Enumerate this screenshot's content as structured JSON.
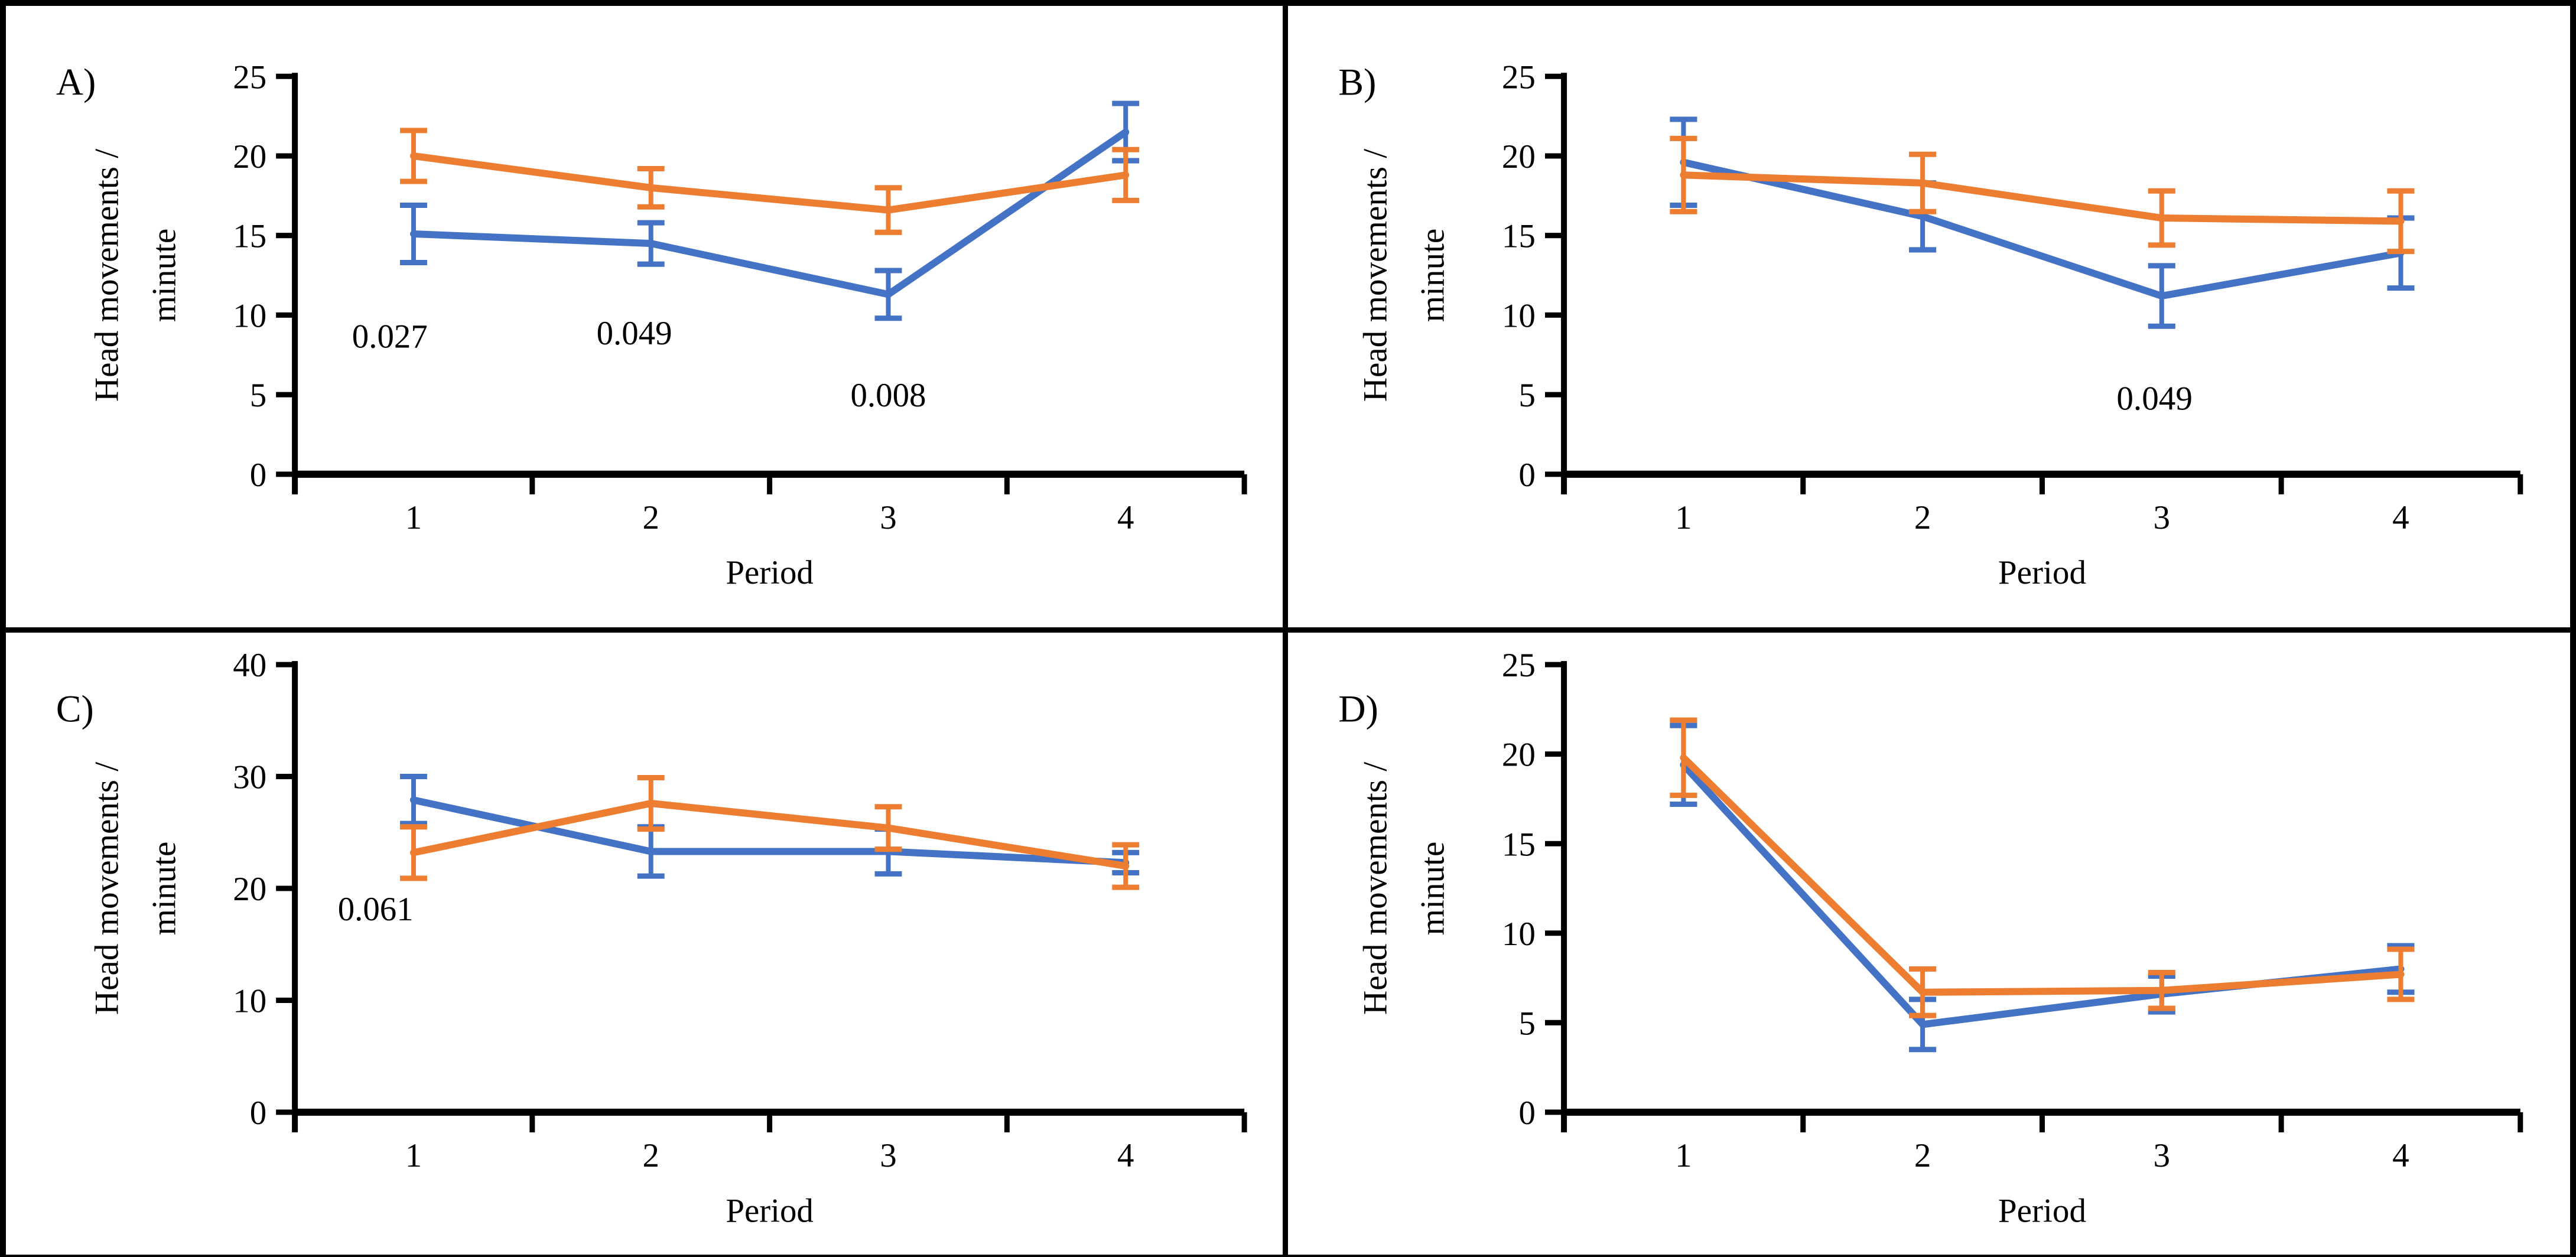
{
  "figure": {
    "description": "Four-panel line chart figure comparing two groups (blue and orange series) of head movements per minute across four periods, with error bars and p-value annotations",
    "background_color": "#ffffff",
    "border_color": "#000000",
    "series_colors": {
      "blue": "#4472C4",
      "orange": "#ED7D31"
    }
  },
  "chart_data": [
    {
      "panel": "A",
      "label": "A)",
      "type": "line",
      "xlabel": "Period",
      "ylabel": "Head movements / minute",
      "ylabel_lines": [
        "Head movements /",
        "minute"
      ],
      "categories": [
        "1",
        "2",
        "3",
        "4"
      ],
      "ylim": [
        0,
        25
      ],
      "yticks": [
        25,
        20,
        15,
        10,
        5,
        0
      ],
      "grid": false,
      "legend": "none",
      "series": [
        {
          "name": "series-blue",
          "color": "#4472C4",
          "values": [
            15.1,
            14.5,
            11.3,
            21.5
          ],
          "errors": [
            1.8,
            1.3,
            1.5,
            1.8
          ]
        },
        {
          "name": "series-orange",
          "color": "#ED7D31",
          "values": [
            20.0,
            18.0,
            16.6,
            18.8
          ],
          "errors": [
            1.6,
            1.2,
            1.4,
            1.6
          ]
        }
      ],
      "annotations": [
        {
          "text": "0.027",
          "x": 0.9,
          "y": 8.7
        },
        {
          "text": "0.049",
          "x": 1.93,
          "y": 8.9
        },
        {
          "text": "0.008",
          "x": 3.0,
          "y": 5.0
        }
      ]
    },
    {
      "panel": "B",
      "label": "B)",
      "type": "line",
      "xlabel": "Period",
      "ylabel": "Head movements / minute",
      "ylabel_lines": [
        "Head movements /",
        "minute"
      ],
      "categories": [
        "1",
        "2",
        "3",
        "4"
      ],
      "ylim": [
        0,
        25
      ],
      "yticks": [
        25,
        20,
        15,
        10,
        5,
        0
      ],
      "grid": false,
      "legend": "none",
      "series": [
        {
          "name": "series-blue",
          "color": "#4472C4",
          "values": [
            19.6,
            16.2,
            11.2,
            13.9
          ],
          "errors": [
            2.7,
            2.1,
            1.9,
            2.2
          ]
        },
        {
          "name": "series-orange",
          "color": "#ED7D31",
          "values": [
            18.8,
            18.3,
            16.1,
            15.9
          ],
          "errors": [
            2.3,
            1.8,
            1.7,
            1.9
          ]
        }
      ],
      "annotations": [
        {
          "text": "0.049",
          "x": 2.97,
          "y": 4.8
        }
      ]
    },
    {
      "panel": "C",
      "label": "C)",
      "type": "line",
      "xlabel": "Period",
      "ylabel": "Head movements / minute",
      "ylabel_lines": [
        "Head movements /",
        "minute"
      ],
      "categories": [
        "1",
        "2",
        "3",
        "4"
      ],
      "ylim": [
        0,
        40
      ],
      "yticks": [
        40,
        30,
        20,
        10,
        0
      ],
      "grid": false,
      "legend": "none",
      "series": [
        {
          "name": "series-blue",
          "color": "#4472C4",
          "values": [
            27.9,
            23.3,
            23.3,
            22.3
          ],
          "errors": [
            2.1,
            2.2,
            2.0,
            0.9
          ]
        },
        {
          "name": "series-orange",
          "color": "#ED7D31",
          "values": [
            23.2,
            27.6,
            25.4,
            22.0
          ],
          "errors": [
            2.3,
            2.3,
            1.9,
            1.9
          ]
        }
      ],
      "annotations": [
        {
          "text": "0.061",
          "x": 0.84,
          "y": 18.2
        }
      ]
    },
    {
      "panel": "D",
      "label": "D)",
      "type": "line",
      "xlabel": "Period",
      "ylabel": "Head movements / minute",
      "ylabel_lines": [
        "Head movements /",
        "minute"
      ],
      "categories": [
        "1",
        "2",
        "3",
        "4"
      ],
      "ylim": [
        0,
        25
      ],
      "yticks": [
        25,
        20,
        15,
        10,
        5,
        0
      ],
      "grid": false,
      "legend": "none",
      "series": [
        {
          "name": "series-blue",
          "color": "#4472C4",
          "values": [
            19.4,
            4.9,
            6.6,
            8.0
          ],
          "errors": [
            2.2,
            1.4,
            1.0,
            1.3
          ]
        },
        {
          "name": "series-orange",
          "color": "#ED7D31",
          "values": [
            19.8,
            6.7,
            6.8,
            7.7
          ],
          "errors": [
            2.1,
            1.3,
            1.0,
            1.4
          ]
        }
      ],
      "annotations": []
    }
  ]
}
